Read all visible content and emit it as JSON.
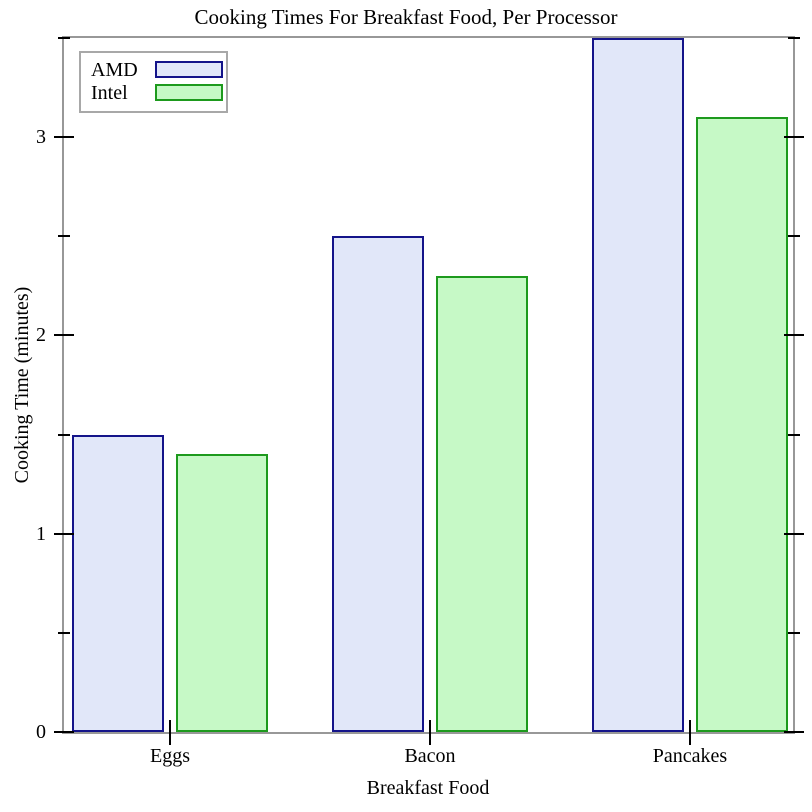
{
  "chart_data": {
    "type": "bar",
    "title": "Cooking Times For Breakfast Food, Per Processor",
    "xlabel": "Breakfast Food",
    "ylabel": "Cooking Time (minutes)",
    "categories": [
      "Eggs",
      "Bacon",
      "Pancakes"
    ],
    "series": [
      {
        "name": "AMD",
        "values": [
          1.5,
          2.5,
          3.5
        ],
        "fill": "#e1e7f9",
        "border": "#14148a"
      },
      {
        "name": "Intel",
        "values": [
          1.4,
          2.3,
          3.1
        ],
        "fill": "#c6f9c6",
        "border": "#1d9a1d"
      }
    ],
    "ylim": [
      0,
      3.5
    ],
    "yticks_major": [
      0,
      1,
      2,
      3
    ],
    "yticks_minor": [
      0.5,
      1.5,
      2.5,
      3.5
    ],
    "ytick_labels": [
      "0",
      "1",
      "2",
      "3"
    ],
    "grid": false,
    "legend_position": "top-left",
    "frame_color": "#989898",
    "tick_color": "#000000"
  }
}
